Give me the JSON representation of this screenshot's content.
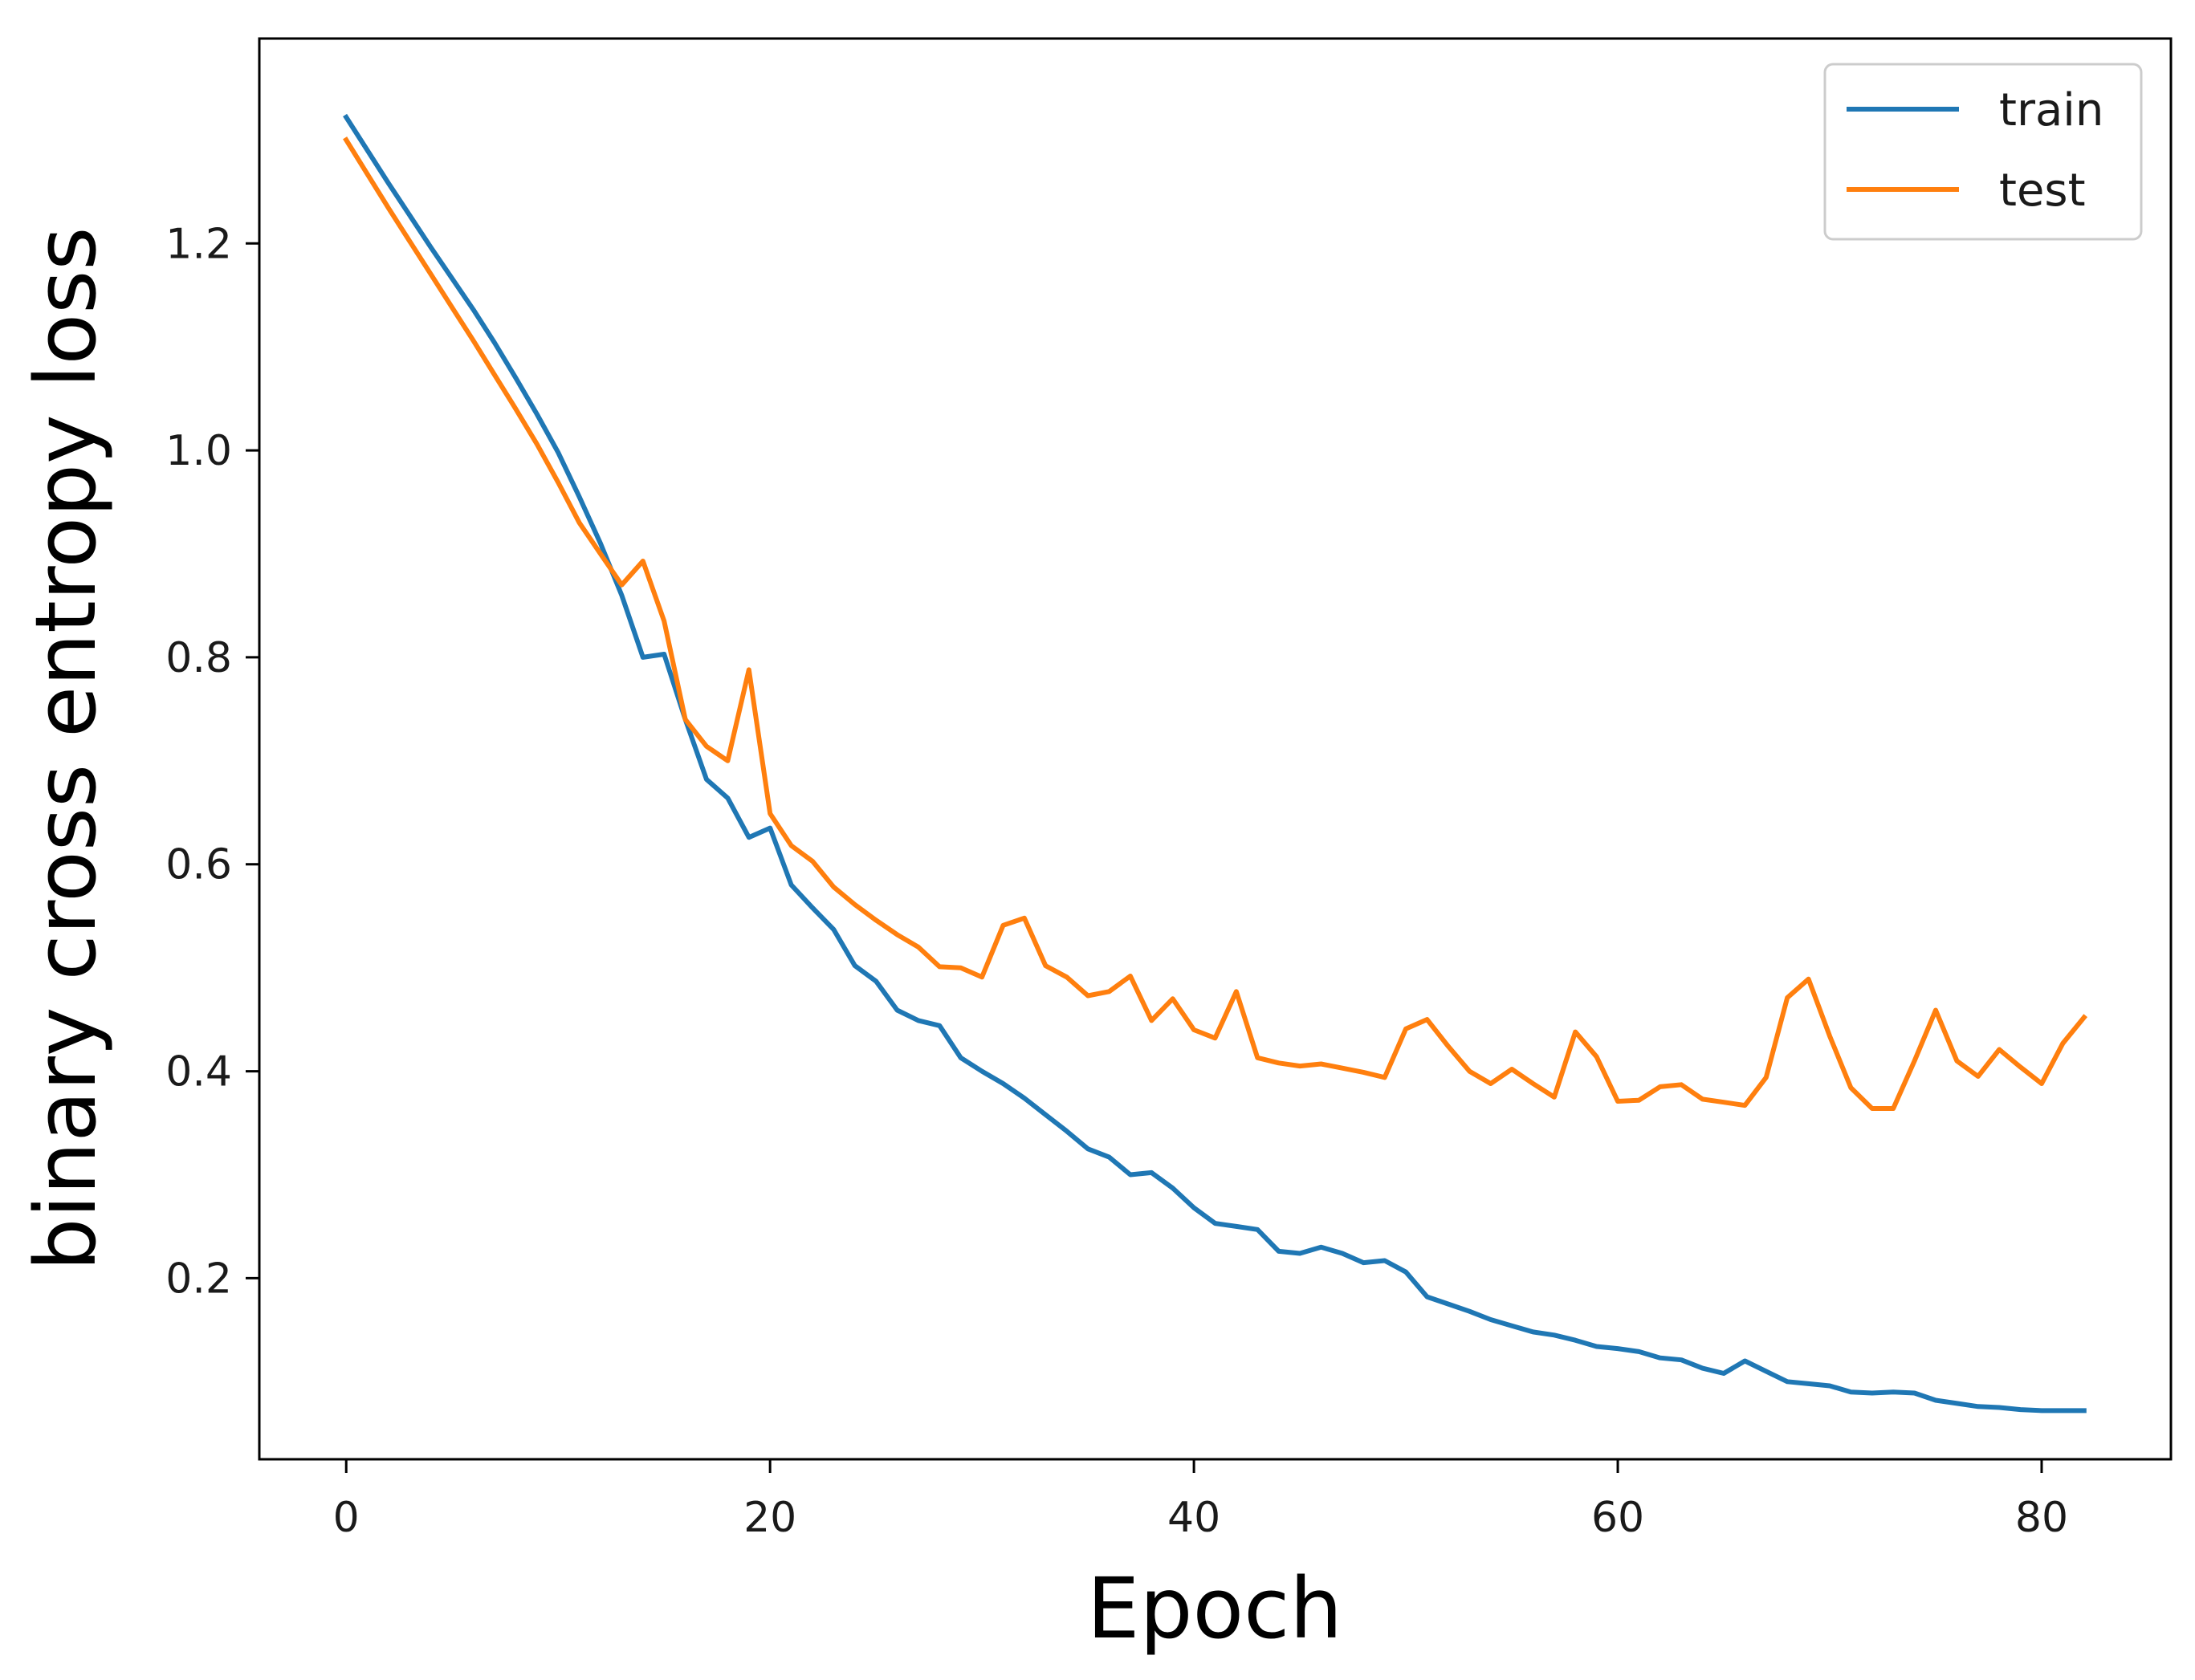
{
  "chart_data": {
    "type": "line",
    "title": "",
    "xlabel": "Epoch",
    "ylabel": "binary cross entropy loss",
    "xlim": [
      -4.1,
      86.1
    ],
    "ylim": [
      0.025,
      1.398
    ],
    "xticks": [
      0,
      20,
      40,
      60,
      80
    ],
    "yticks": [
      0.2,
      0.4,
      0.6,
      0.8,
      1.0,
      1.2
    ],
    "grid": false,
    "legend_position": "top-right",
    "colors": {
      "train": "#1f77b4",
      "test": "#ff7f0e"
    },
    "x": [
      0,
      1,
      2,
      3,
      4,
      5,
      6,
      7,
      8,
      9,
      10,
      11,
      12,
      13,
      14,
      15,
      16,
      17,
      18,
      19,
      20,
      21,
      22,
      23,
      24,
      25,
      26,
      27,
      28,
      29,
      30,
      31,
      32,
      33,
      34,
      35,
      36,
      37,
      38,
      39,
      40,
      41,
      42,
      43,
      44,
      45,
      46,
      47,
      48,
      49,
      50,
      51,
      52,
      53,
      54,
      55,
      56,
      57,
      58,
      59,
      60,
      61,
      62,
      63,
      64,
      65,
      66,
      67,
      68,
      69,
      70,
      71,
      72,
      73,
      74,
      75,
      76,
      77,
      78,
      79,
      80,
      81,
      82
    ],
    "series": [
      {
        "name": "train",
        "values": [
          1.322,
          1.29,
          1.258,
          1.227,
          1.196,
          1.166,
          1.136,
          1.104,
          1.07,
          1.035,
          0.998,
          0.955,
          0.91,
          0.86,
          0.8,
          0.803,
          0.74,
          0.682,
          0.664,
          0.626,
          0.635,
          0.58,
          0.558,
          0.537,
          0.502,
          0.487,
          0.459,
          0.449,
          0.444,
          0.413,
          0.4,
          0.388,
          0.374,
          0.358,
          0.342,
          0.325,
          0.317,
          0.3,
          0.302,
          0.287,
          0.268,
          0.253,
          0.25,
          0.247,
          0.226,
          0.224,
          0.23,
          0.224,
          0.215,
          0.217,
          0.206,
          0.182,
          0.175,
          0.168,
          0.16,
          0.154,
          0.148,
          0.145,
          0.14,
          0.134,
          0.132,
          0.129,
          0.123,
          0.121,
          0.113,
          0.108,
          0.12,
          0.11,
          0.1,
          0.098,
          0.096,
          0.09,
          0.089,
          0.09,
          0.089,
          0.082,
          0.079,
          0.076,
          0.075,
          0.073,
          0.072,
          0.072,
          0.072
        ]
      },
      {
        "name": "test",
        "values": [
          1.3,
          1.267,
          1.234,
          1.202,
          1.17,
          1.138,
          1.106,
          1.073,
          1.04,
          1.006,
          0.969,
          0.93,
          0.9,
          0.87,
          0.893,
          0.835,
          0.74,
          0.714,
          0.7,
          0.788,
          0.649,
          0.618,
          0.603,
          0.578,
          0.561,
          0.546,
          0.532,
          0.52,
          0.501,
          0.5,
          0.491,
          0.541,
          0.548,
          0.502,
          0.491,
          0.473,
          0.477,
          0.492,
          0.449,
          0.47,
          0.44,
          0.432,
          0.477,
          0.413,
          0.408,
          0.405,
          0.407,
          0.403,
          0.399,
          0.394,
          0.441,
          0.45,
          0.424,
          0.4,
          0.388,
          0.402,
          0.388,
          0.375,
          0.438,
          0.414,
          0.371,
          0.372,
          0.385,
          0.387,
          0.373,
          0.37,
          0.367,
          0.394,
          0.471,
          0.489,
          0.434,
          0.384,
          0.364,
          0.364,
          0.41,
          0.459,
          0.41,
          0.395,
          0.421,
          0.404,
          0.388,
          0.427,
          0.452
        ]
      }
    ]
  }
}
